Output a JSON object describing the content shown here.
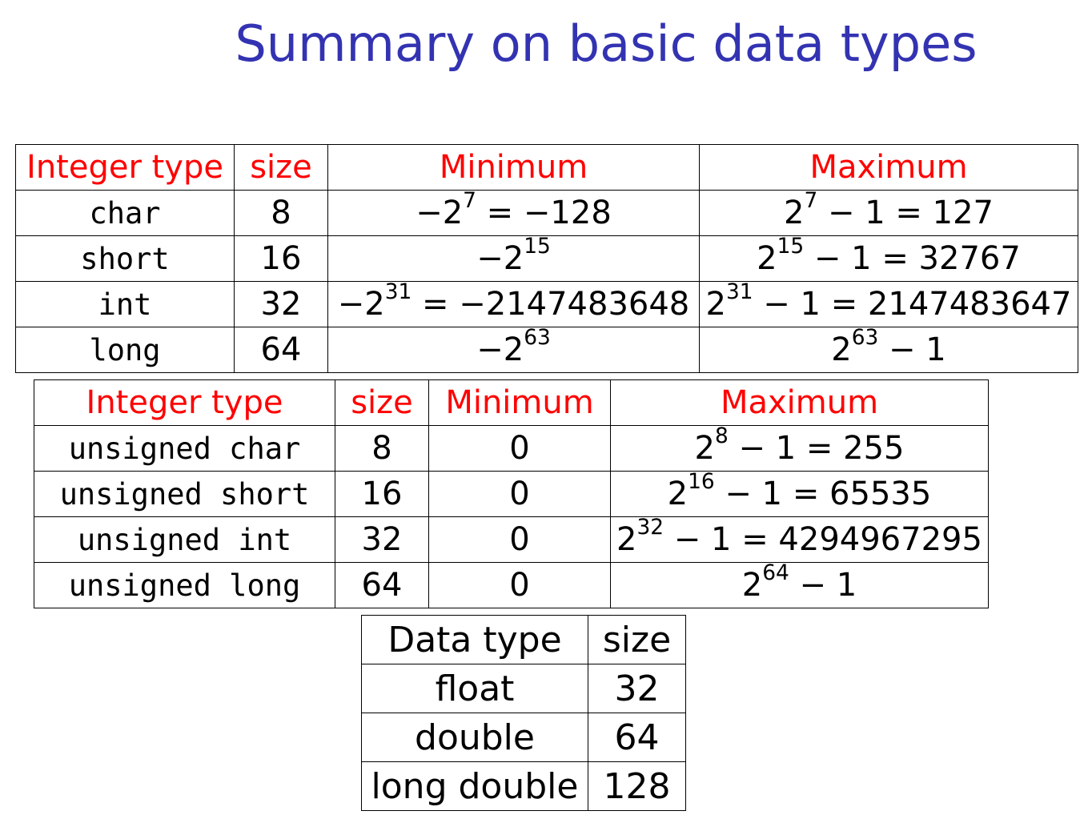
{
  "title": "Summary on basic data types",
  "signed_table": {
    "headers": [
      "Integer type",
      "size",
      "Minimum",
      "Maximum"
    ],
    "rows": [
      {
        "type": "char",
        "size": "8",
        "min": {
          "pre": "−2",
          "exp": "7",
          "post": " = −128"
        },
        "max": {
          "pre": "2",
          "exp": "7",
          "post": " − 1 = 127"
        }
      },
      {
        "type": "short",
        "size": "16",
        "min": {
          "pre": "−2",
          "exp": "15",
          "post": ""
        },
        "max": {
          "pre": "2",
          "exp": "15",
          "post": " − 1 = 32767"
        }
      },
      {
        "type": "int",
        "size": "32",
        "min": {
          "pre": "−2",
          "exp": "31",
          "post": " = −2147483648"
        },
        "max": {
          "pre": "2",
          "exp": "31",
          "post": " − 1 = 2147483647"
        }
      },
      {
        "type": "long",
        "size": "64",
        "min": {
          "pre": "−2",
          "exp": "63",
          "post": ""
        },
        "max": {
          "pre": "2",
          "exp": "63",
          "post": " − 1"
        }
      }
    ]
  },
  "unsigned_table": {
    "headers": [
      "Integer type",
      "size",
      "Minimum",
      "Maximum"
    ],
    "rows": [
      {
        "type": "unsigned char",
        "size": "8",
        "min": "0",
        "max": {
          "pre": "2",
          "exp": "8",
          "post": " − 1 = 255"
        }
      },
      {
        "type": "unsigned short",
        "size": "16",
        "min": "0",
        "max": {
          "pre": "2",
          "exp": "16",
          "post": " − 1 = 65535"
        }
      },
      {
        "type": "unsigned int",
        "size": "32",
        "min": "0",
        "max": {
          "pre": "2",
          "exp": "32",
          "post": " − 1 = 4294967295"
        }
      },
      {
        "type": "unsigned long",
        "size": "64",
        "min": "0",
        "max": {
          "pre": "2",
          "exp": "64",
          "post": " − 1"
        }
      }
    ]
  },
  "float_table": {
    "headers": [
      "Data type",
      "size"
    ],
    "rows": [
      {
        "type": "float",
        "size": "32"
      },
      {
        "type": "double",
        "size": "64"
      },
      {
        "type": "long double",
        "size": "128"
      }
    ]
  }
}
